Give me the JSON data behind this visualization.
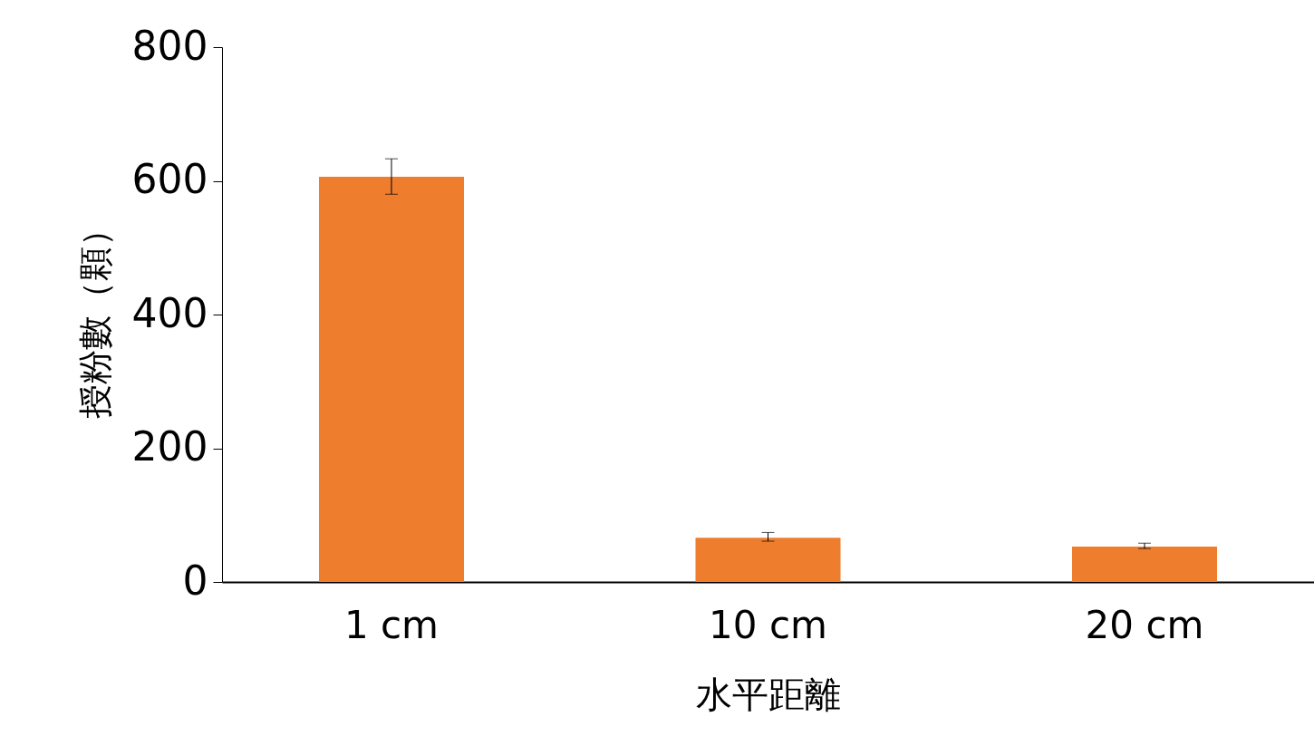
{
  "chart_data": {
    "type": "bar",
    "xlabel": "水平距離",
    "ylabel": "授粉數（顆）",
    "categories": [
      "1 cm",
      "10 cm",
      "20 cm"
    ],
    "values": [
      606,
      66,
      53
    ],
    "errors": [
      [
        580,
        633
      ],
      [
        61,
        74
      ],
      [
        50,
        58
      ]
    ],
    "color": "#ee7d2e",
    "ylim": [
      0,
      800
    ],
    "yticks": [
      0,
      200,
      400,
      600,
      800
    ],
    "grid": false
  }
}
